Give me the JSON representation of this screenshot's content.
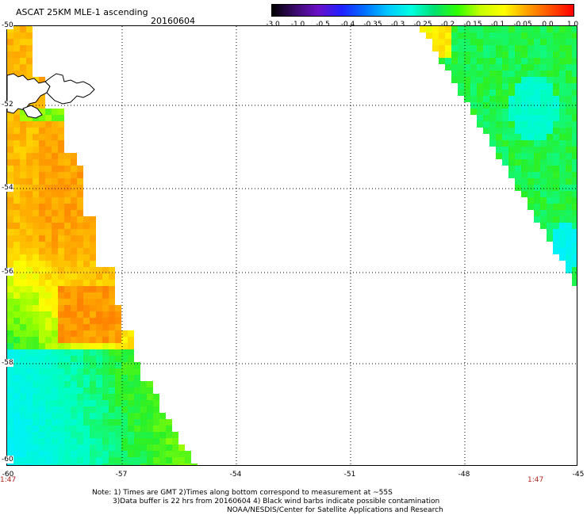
{
  "title": "ASCAT 25KM MLE-1 ascending",
  "date": "20160604",
  "colorbar": {
    "labels": [
      "-3.0",
      "-1.0",
      "-0.5",
      "-0.4",
      "-0.35",
      "-0.3",
      "-0.25",
      "-0.2",
      "-0.15",
      "-0.1",
      "-0.05",
      "0.0",
      "1.0"
    ],
    "colors": [
      "#000000",
      "#3a0a6a",
      "#6a10c8",
      "#2020ff",
      "#0070ff",
      "#00c8ff",
      "#00ffe0",
      "#00e070",
      "#30ff00",
      "#c8ff00",
      "#ffff00",
      "#ffa000",
      "#ff5000",
      "#ff0000"
    ]
  },
  "axes": {
    "lon_labels": [
      "-60",
      "-57",
      "-54",
      "-51",
      "-48",
      "-45"
    ],
    "lat_labels": [
      "-50",
      "-52",
      "-54",
      "-56",
      "-58",
      "-60"
    ],
    "lon_range": [
      -60,
      -45
    ],
    "lat_range": [
      -60,
      -50
    ]
  },
  "swath_times": {
    "left": "1:47",
    "right": "1:47"
  },
  "notes": [
    "Note: 1) Times are GMT 2)Times along bottom correspond to measurement at ~55S",
    "3)Data buffer is 22 hrs from 20160604 4) Black wind barbs indicate possible contamination",
    "NOAA/NESDIS/Center for Satellite Applications and Research"
  ]
}
